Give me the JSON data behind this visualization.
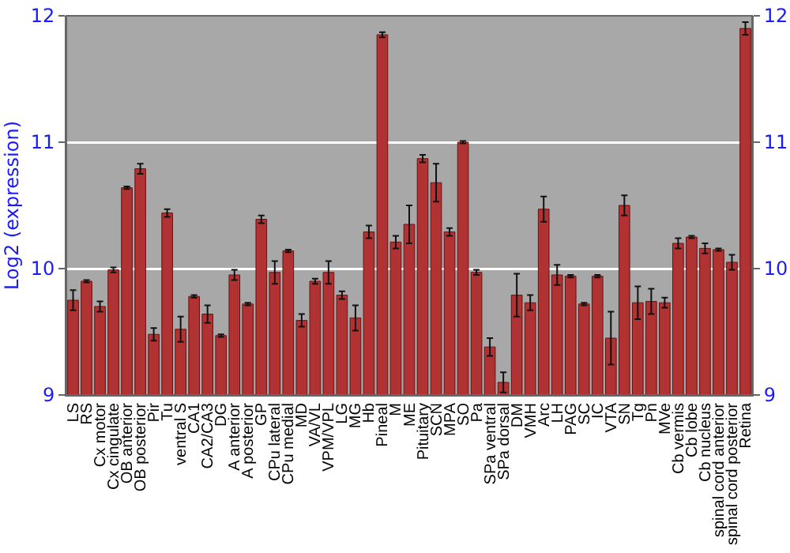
{
  "chart_data": {
    "type": "bar",
    "ylabel": "Log2 (expression)",
    "categories": [
      "LS",
      "RS",
      "Cx motor",
      "Cx cingulate",
      "OB anterior",
      "OB posterior",
      "Pir",
      "Tu",
      "ventral S",
      "CA1",
      "CA2/CA3",
      "DG",
      "A anterior",
      "A posterior",
      "GP",
      "CPu lateral",
      "CPu medial",
      "MD",
      "VA/VL",
      "VPM/VPL",
      "LG",
      "MG",
      "Hb",
      "Pineal",
      "M",
      "ME",
      "Pituitary",
      "SCN",
      "MPA",
      "SO",
      "Pa",
      "SPa ventral",
      "SPa dorsal",
      "DM",
      "VMH",
      "Arc",
      "LH",
      "PAG",
      "SC",
      "IC",
      "VTA",
      "SN",
      "Tg",
      "Pn",
      "MVe",
      "Cb vermis",
      "Cb lobe",
      "Cb nucleus",
      "spinal cord anterior",
      "spinal cord posterior",
      "Retina"
    ],
    "values": [
      9.75,
      9.9,
      9.7,
      9.99,
      10.64,
      10.79,
      9.48,
      10.44,
      9.52,
      9.78,
      9.64,
      9.47,
      9.95,
      9.72,
      10.39,
      9.97,
      10.14,
      9.59,
      9.9,
      9.97,
      9.79,
      9.61,
      10.29,
      11.85,
      10.21,
      10.35,
      10.87,
      10.68,
      10.29,
      11.0,
      9.97,
      9.38,
      9.1,
      9.79,
      9.73,
      10.47,
      9.95,
      9.94,
      9.72,
      9.94,
      9.45,
      10.5,
      9.73,
      9.74,
      9.73,
      10.2,
      10.25,
      10.16,
      10.15,
      10.05,
      11.9
    ],
    "errors": [
      0.08,
      0.01,
      0.04,
      0.02,
      0.01,
      0.04,
      0.05,
      0.03,
      0.1,
      0.01,
      0.07,
      0.01,
      0.04,
      0.01,
      0.03,
      0.09,
      0.01,
      0.05,
      0.02,
      0.09,
      0.03,
      0.1,
      0.05,
      0.02,
      0.05,
      0.15,
      0.03,
      0.15,
      0.03,
      0.01,
      0.02,
      0.07,
      0.08,
      0.17,
      0.06,
      0.1,
      0.08,
      0.01,
      0.01,
      0.01,
      0.21,
      0.08,
      0.13,
      0.1,
      0.04,
      0.04,
      0.01,
      0.04,
      0.01,
      0.06,
      0.05
    ],
    "color": "#b03232",
    "ylim": [
      9,
      12
    ],
    "yticks": [
      9,
      10,
      11,
      12
    ],
    "y2lim": [
      9,
      12
    ],
    "y2ticks": [
      9,
      10,
      11,
      12
    ],
    "grid": "y"
  }
}
